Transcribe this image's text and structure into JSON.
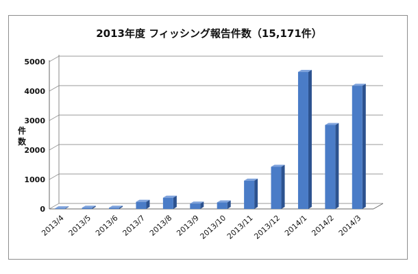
{
  "chart_data": {
    "type": "bar",
    "title": "2013年度 フィッシング報告件数（15,171件）",
    "ylabel": "件数",
    "xlabel": "",
    "categories": [
      "2013/4",
      "2013/5",
      "2013/6",
      "2013/7",
      "2013/8",
      "2013/9",
      "2013/10",
      "2013/11",
      "2013/12",
      "2014/1",
      "2014/2",
      "2014/3"
    ],
    "values": [
      20,
      40,
      40,
      240,
      380,
      180,
      220,
      960,
      1430,
      4650,
      2850,
      4180
    ],
    "ylim": [
      0,
      5000
    ],
    "yticks": [
      "0",
      "1000",
      "2000",
      "3000",
      "4000",
      "5000"
    ],
    "grid": true,
    "legend": "none",
    "colors": {
      "bar_front": "#4a7cc7",
      "bar_side": "#2c528f",
      "bar_top": "#7fa3dc",
      "grid": "#9a9a9a"
    }
  }
}
